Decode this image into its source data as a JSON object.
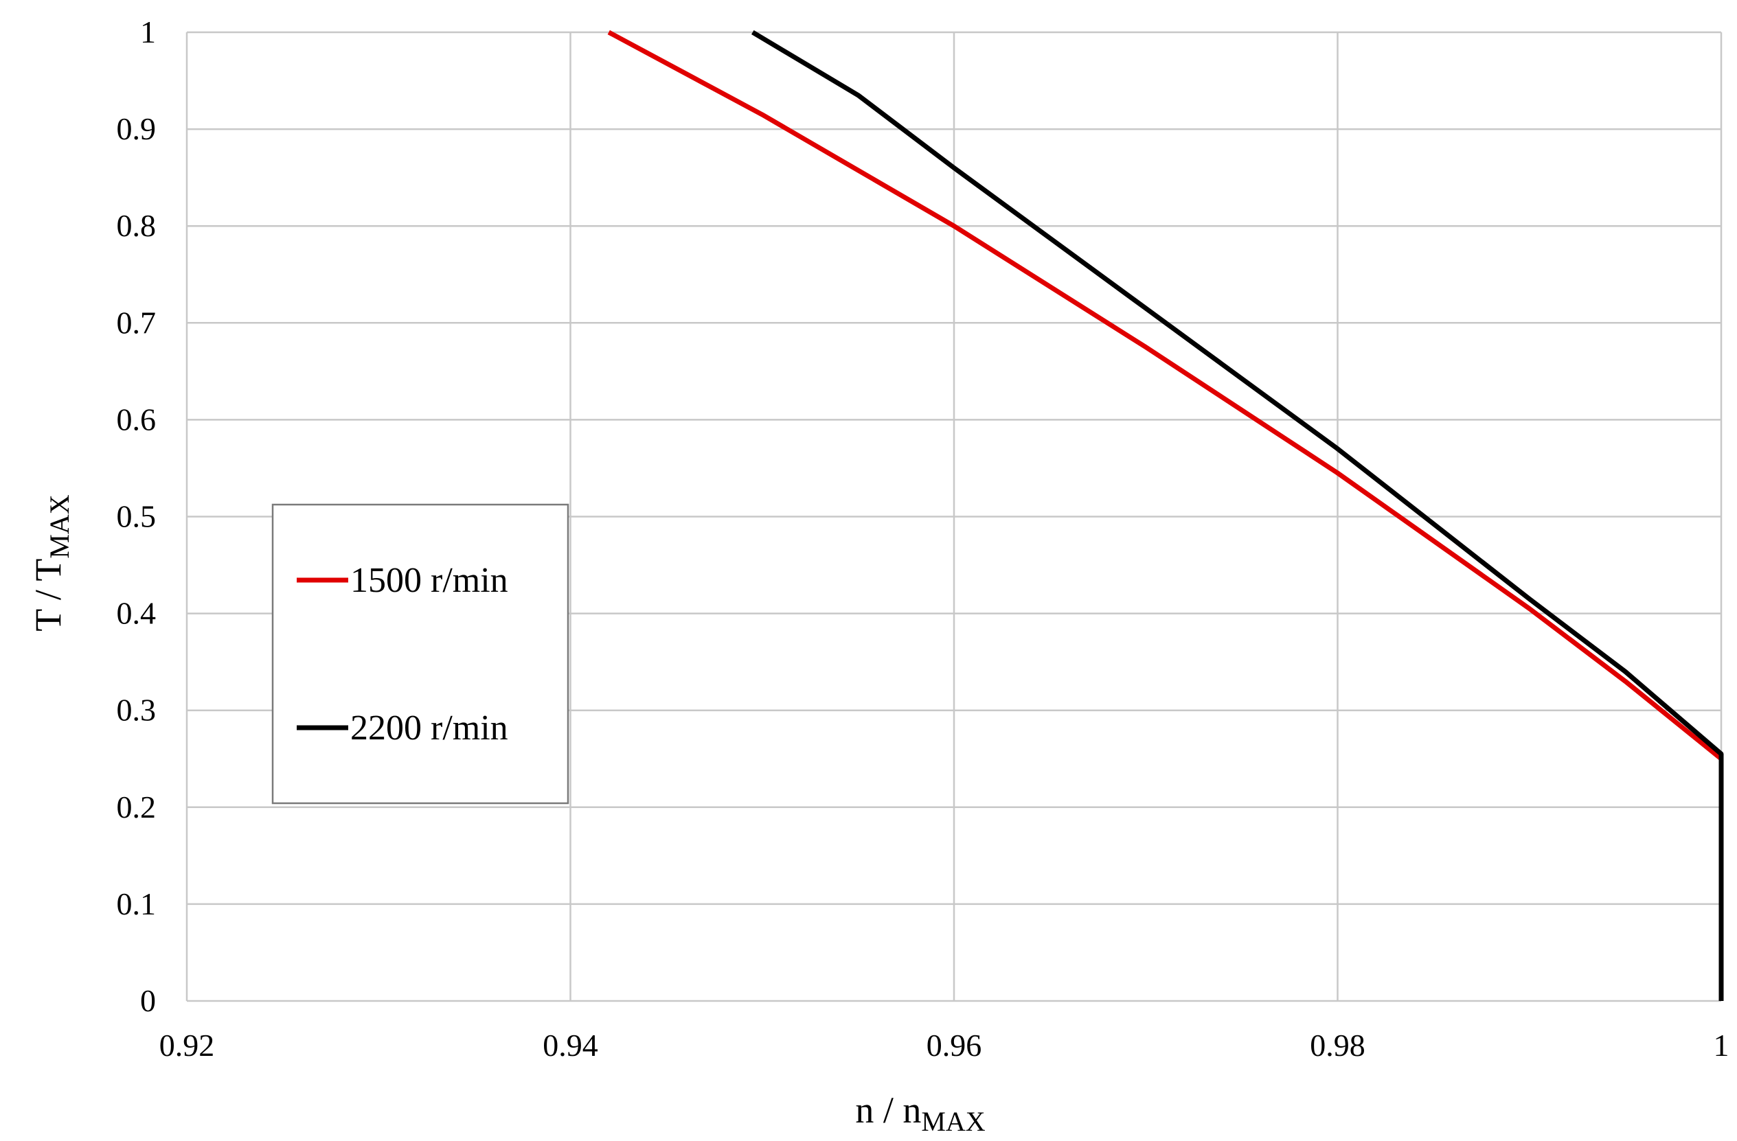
{
  "chart_data": {
    "type": "line",
    "title": "",
    "xlabel": "n / n",
    "xlabel_sub": "MAX",
    "ylabel": "T / T",
    "ylabel_sub": "MAX",
    "xlim": [
      0.92,
      1.0
    ],
    "ylim": [
      0,
      1
    ],
    "xticks": [
      0.92,
      0.94,
      0.96,
      0.98,
      1.0
    ],
    "xtick_labels": [
      "0.92",
      "0.94",
      "0.96",
      "0.98",
      "1"
    ],
    "yticks": [
      0,
      0.1,
      0.2,
      0.3,
      0.4,
      0.5,
      0.6,
      0.7,
      0.8,
      0.9,
      1.0
    ],
    "ytick_labels": [
      "0",
      "0.1",
      "0.2",
      "0.3",
      "0.4",
      "0.5",
      "0.6",
      "0.7",
      "0.8",
      "0.9",
      "1"
    ],
    "grid": true,
    "legend_position": "center-left",
    "series": [
      {
        "name": "1500 r/min",
        "color": "#e00000",
        "x": [
          0.942,
          0.95,
          0.96,
          0.97,
          0.98,
          0.99,
          0.995,
          1.0,
          1.0
        ],
        "y": [
          1.0,
          0.915,
          0.8,
          0.675,
          0.545,
          0.405,
          0.33,
          0.25,
          0.0
        ]
      },
      {
        "name": "2200 r/min",
        "color": "#000000",
        "x": [
          0.9495,
          0.955,
          0.96,
          0.97,
          0.98,
          0.99,
          0.995,
          1.0,
          1.0
        ],
        "y": [
          1.0,
          0.935,
          0.86,
          0.715,
          0.57,
          0.415,
          0.34,
          0.255,
          0.0
        ]
      }
    ]
  }
}
